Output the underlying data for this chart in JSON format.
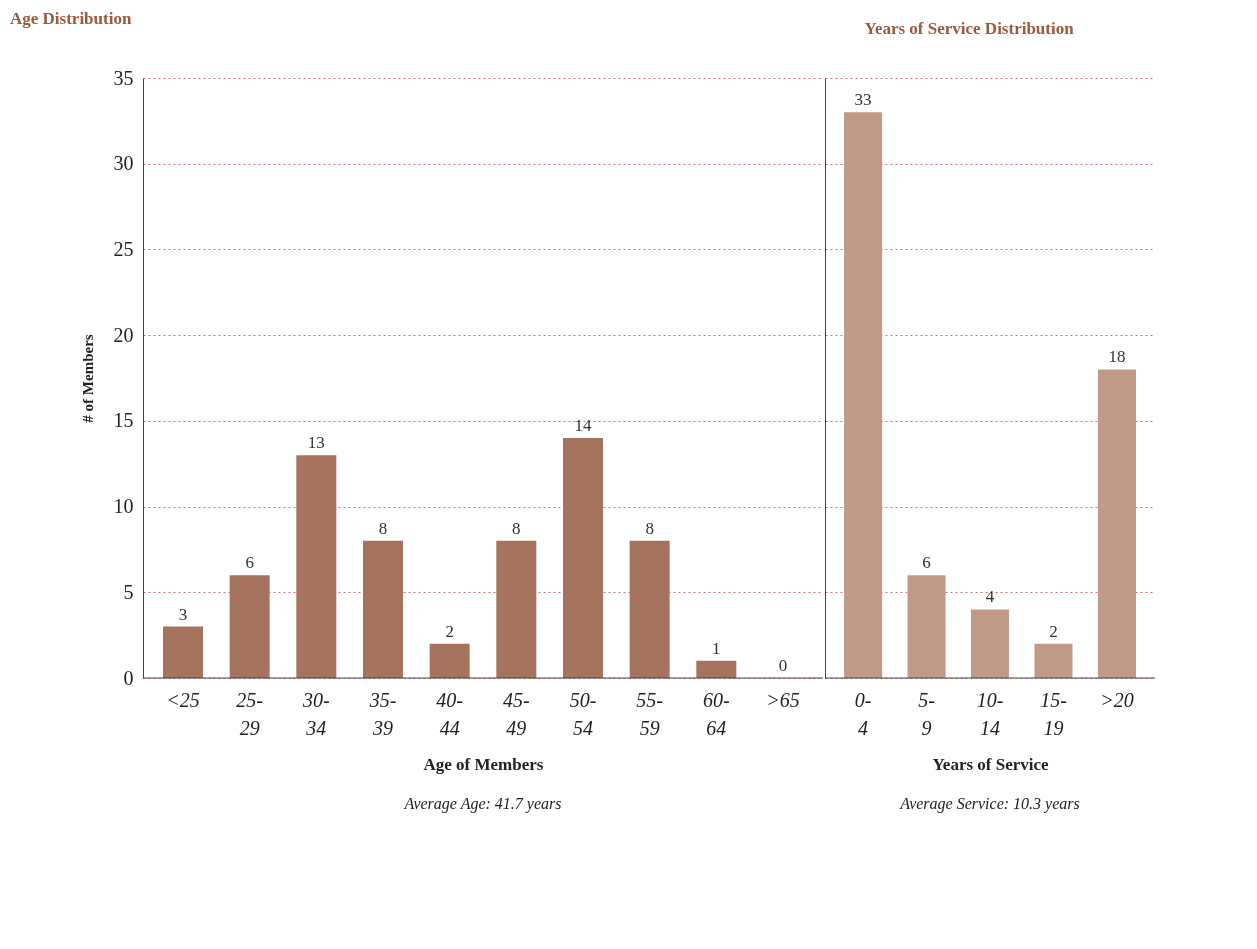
{
  "chart_data": [
    {
      "type": "bar",
      "title": "Age Distribution",
      "ylabel": "# of Members",
      "xlabel": "Age of Members",
      "annotations": [
        "Average Age: 41.7 years"
      ],
      "categories": [
        "<25",
        "25-29",
        "30-34",
        "35-39",
        "40-44",
        "45-49",
        "50-54",
        "55-59",
        "60-64",
        ">65"
      ],
      "values": [
        3,
        6,
        13,
        8,
        2,
        8,
        14,
        8,
        1,
        0
      ],
      "color": "#a6735e",
      "ylim": [
        0,
        35
      ],
      "yticks": [
        0,
        5,
        10,
        15,
        20,
        25,
        30,
        35
      ],
      "grid": "y",
      "data_labels": true
    },
    {
      "type": "bar",
      "title": "Years of Service Distribution",
      "xlabel": "Years of Service",
      "annotations": [
        "Average Service: 10.3 years"
      ],
      "categories": [
        "0-4",
        "5-9",
        "10-14",
        "15-19",
        ">20"
      ],
      "values": [
        33,
        6,
        4,
        2,
        18
      ],
      "color": "#bf9a87",
      "ylim": [
        0,
        35
      ],
      "yticks": [
        0,
        5,
        10,
        15,
        20,
        25,
        30,
        35
      ],
      "grid": "y",
      "data_labels": true,
      "tick_labels": "x"
    }
  ]
}
